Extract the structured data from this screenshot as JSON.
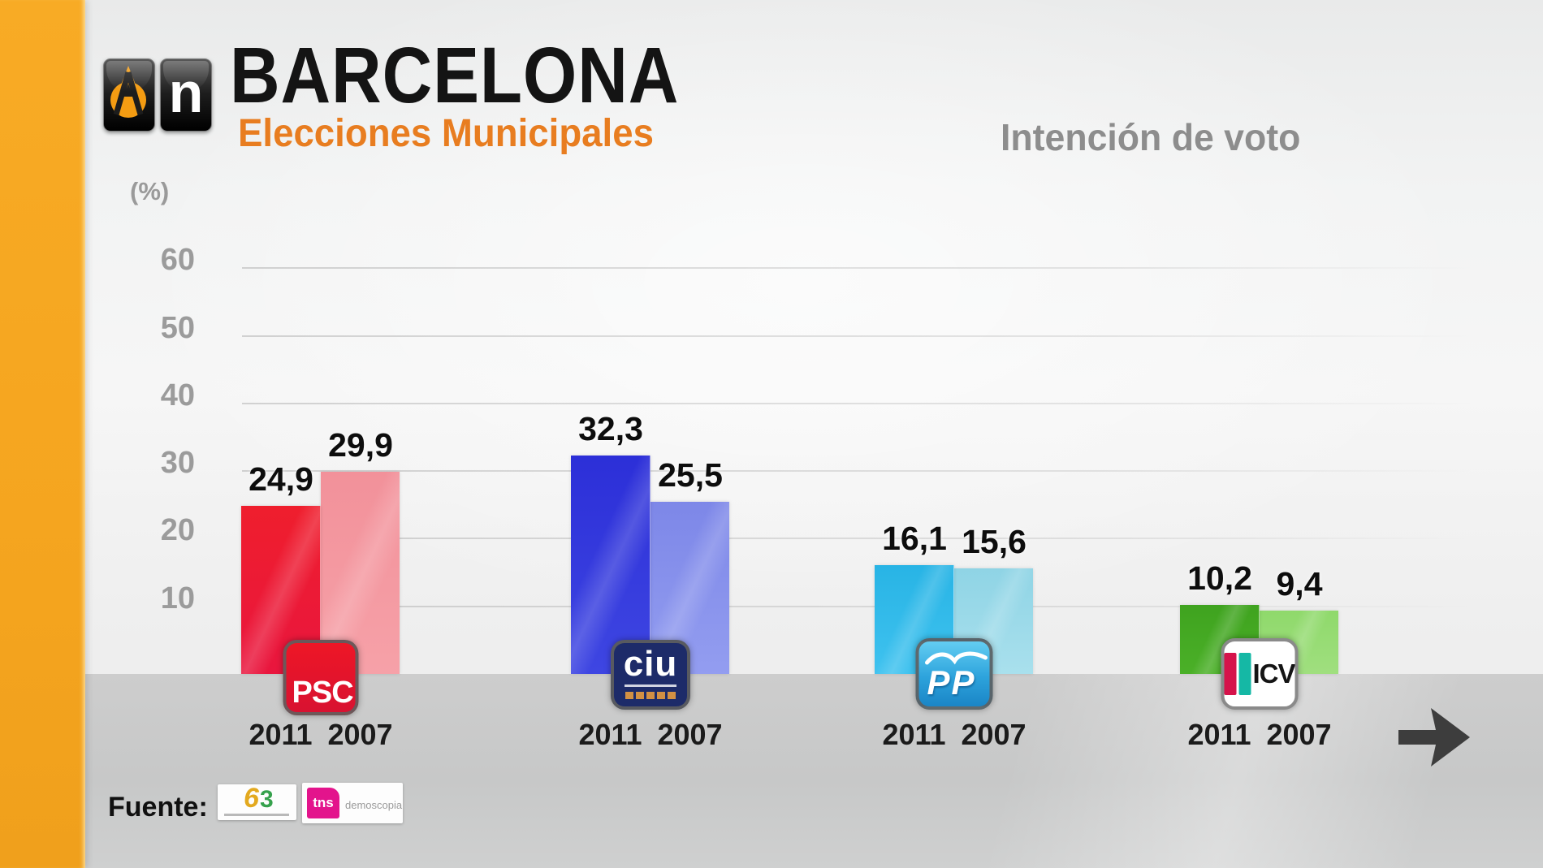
{
  "header": {
    "brand": {
      "n_label": "n"
    },
    "title": "BARCELONA",
    "subtitle": "Elecciones Municipales",
    "right_title": "Intención de voto"
  },
  "axis": {
    "unit": "(%)"
  },
  "chart_data": {
    "type": "bar",
    "title": "Intención de voto",
    "subtitle": "Elecciones Municipales — Barcelona",
    "categories": [
      "PSC",
      "CiU",
      "PP",
      "ICV"
    ],
    "series": [
      {
        "name": "2011",
        "values": [
          24.9,
          32.3,
          16.1,
          10.2
        ]
      },
      {
        "name": "2007",
        "values": [
          29.9,
          25.5,
          15.6,
          9.4
        ]
      }
    ],
    "ylabel": "(%)",
    "ylim": [
      0,
      65
    ],
    "y_ticks": [
      10,
      20,
      30,
      40,
      50,
      60
    ],
    "grid": true,
    "legend_position": "year labels under each bar pair"
  },
  "groups": [
    {
      "party": "PSC",
      "logo_label": "PSC",
      "values": {
        "y2011": "24,9",
        "y2007": "29,9"
      },
      "years": {
        "y2011": "2011",
        "y2007": "2007"
      },
      "colors": {
        "y2011": {
          "top": "#ef1e2d",
          "bottom": "#e9163e"
        },
        "y2007": {
          "top": "#f2919a",
          "bottom": "#f6a1a8"
        }
      }
    },
    {
      "party": "CiU",
      "logo_label": "ciu",
      "values": {
        "y2011": "32,3",
        "y2007": "25,5"
      },
      "years": {
        "y2011": "2011",
        "y2007": "2007"
      },
      "colors": {
        "y2011": {
          "top": "#2c2fd8",
          "bottom": "#3e46e2"
        },
        "y2007": {
          "top": "#7d87e8",
          "bottom": "#939df0"
        }
      }
    },
    {
      "party": "PP",
      "logo_label": "PP",
      "values": {
        "y2011": "16,1",
        "y2007": "15,6"
      },
      "years": {
        "y2011": "2011",
        "y2007": "2007"
      },
      "colors": {
        "y2011": {
          "top": "#28b4e5",
          "bottom": "#3fc2ef"
        },
        "y2007": {
          "top": "#8fd4e5",
          "bottom": "#a9e0ed"
        }
      }
    },
    {
      "party": "ICV",
      "logo_label": "ICV",
      "values": {
        "y2011": "10,2",
        "y2007": "9,4"
      },
      "years": {
        "y2011": "2011",
        "y2007": "2007"
      },
      "colors": {
        "y2011": {
          "top": "#3fa31f",
          "bottom": "#4bb028"
        },
        "y2007": {
          "top": "#8fd96b",
          "bottom": "#a0df7f"
        }
      }
    }
  ],
  "footer": {
    "source_label": "Fuente:",
    "sources": [
      {
        "name": "b3"
      },
      {
        "name": "tns demoscopia",
        "box_text": "tns",
        "caption": "demoscopia"
      }
    ]
  },
  "accent_colors": {
    "side_band": "#f5a51f",
    "subtitle_orange": "#e87d20",
    "right_title_gray": "#8d8d8d"
  }
}
